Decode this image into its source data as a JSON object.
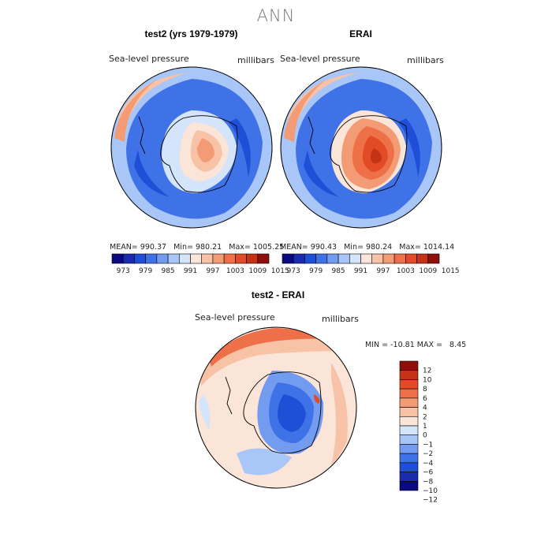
{
  "title": "ANN",
  "panels": [
    {
      "name": "test2",
      "title": "test2 (yrs 1979-1979)",
      "variable": "Sea-level pressure",
      "units": "millibars",
      "mean": "990.37",
      "min": "980.21",
      "max": "1005.25"
    },
    {
      "name": "erai",
      "title": "ERAI",
      "variable": "Sea-level pressure",
      "units": "millibars",
      "mean": "990.43",
      "min": "980.24",
      "max": "1014.14"
    }
  ],
  "diff": {
    "title": "test2 - ERAI",
    "variable": "Sea-level pressure",
    "units": "millibars",
    "min": "-10.81",
    "max": "8.45"
  },
  "colors": {
    "abs": [
      "#0a0a80",
      "#1b2bb0",
      "#1f4fd6",
      "#3f72e6",
      "#739cf0",
      "#a9c6f8",
      "#d4e4fb",
      "#fbe4d8",
      "#f8c2a6",
      "#f39b74",
      "#ed7048",
      "#e34a26",
      "#c53316",
      "#8e0e0a"
    ],
    "diff": [
      "#0a0a80",
      "#1b2bb0",
      "#1f4fd6",
      "#3f72e6",
      "#739cf0",
      "#a9c6f8",
      "#d4e4fb",
      "#fbe4d8",
      "#f8c2a6",
      "#f39b74",
      "#ed7048",
      "#e34a26",
      "#c53316",
      "#8e0e0a"
    ],
    "title_gray": "#777777"
  },
  "chart_data": [
    {
      "type": "heatmap",
      "projection": "south-polar-stereographic",
      "title": "test2 (yrs 1979-1979)",
      "variable": "Sea-level pressure",
      "units": "millibars",
      "mean": 990.37,
      "min": 980.21,
      "max": 1005.25,
      "levels": [
        973,
        976,
        979,
        982,
        985,
        988,
        991,
        994,
        997,
        1000,
        1003,
        1006,
        1009,
        1012,
        1015
      ],
      "colorbar_labels": [
        "973",
        "979",
        "985",
        "991",
        "997",
        "1003",
        "1009",
        "1015"
      ],
      "zones": {
        "antarctic_interior": 1000,
        "antarctic_coast": 992,
        "circumpolar_trough": 983,
        "midlatitudes": 997
      }
    },
    {
      "type": "heatmap",
      "projection": "south-polar-stereographic",
      "title": "ERAI",
      "variable": "Sea-level pressure",
      "units": "millibars",
      "mean": 990.43,
      "min": 980.24,
      "max": 1014.14,
      "levels": [
        973,
        976,
        979,
        982,
        985,
        988,
        991,
        994,
        997,
        1000,
        1003,
        1006,
        1009,
        1012,
        1015
      ],
      "colorbar_labels": [
        "973",
        "979",
        "985",
        "991",
        "997",
        "1003",
        "1009",
        "1015"
      ],
      "zones": {
        "antarctic_interior": 1008,
        "antarctic_coast": 994,
        "circumpolar_trough": 983,
        "midlatitudes": 997
      }
    },
    {
      "type": "heatmap",
      "projection": "south-polar-stereographic",
      "title": "test2 - ERAI",
      "variable": "Sea-level pressure",
      "units": "millibars",
      "min": -10.81,
      "max": 8.45,
      "levels": [
        -12,
        -10,
        -8,
        -6,
        -4,
        -2,
        -1,
        0,
        1,
        2,
        4,
        6,
        8,
        10,
        12
      ],
      "colorbar_labels": [
        "12",
        "10",
        "8",
        "6",
        "4",
        "2",
        "1",
        "0",
        "−1",
        "−2",
        "−4",
        "−6",
        "−8",
        "−10",
        "−12"
      ]
    }
  ]
}
